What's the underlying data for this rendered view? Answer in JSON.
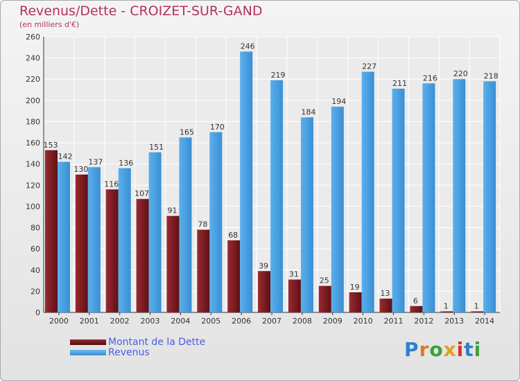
{
  "header": {
    "title": "Revenus/Dette - CROIZET-SUR-GAND",
    "subtitle": "(en milliers d'€)"
  },
  "legend": {
    "items": [
      {
        "label": "Montant de la Dette",
        "color": "#7a1c22"
      },
      {
        "label": "Revenus",
        "color": "#4aa0e0"
      }
    ]
  },
  "logo": {
    "text": "Proxiti",
    "letter_colors": [
      "#2e7fd0",
      "#e07a1a",
      "#3aa03a",
      "#e0a020",
      "#d8302a",
      "#2e7fd0",
      "#3aa03a"
    ]
  },
  "chart_data": {
    "type": "bar",
    "title": "Revenus/Dette - CROIZET-SUR-GAND",
    "ylabel": "(en milliers d'€)",
    "xlabel": "",
    "ylim": [
      0,
      260
    ],
    "yticks": [
      0,
      20,
      40,
      60,
      80,
      100,
      120,
      140,
      160,
      180,
      200,
      220,
      240,
      260
    ],
    "grid": true,
    "legend_position": "bottom-left",
    "categories": [
      "2000",
      "2001",
      "2002",
      "2003",
      "2004",
      "2005",
      "2006",
      "2007",
      "2008",
      "2009",
      "2010",
      "2011",
      "2012",
      "2013",
      "2014"
    ],
    "series": [
      {
        "name": "Montant de la Dette",
        "color": "#7a1c22",
        "values": [
          153,
          130,
          116,
          107,
          91,
          78,
          68,
          39,
          31,
          25,
          19,
          13,
          6,
          1,
          1
        ]
      },
      {
        "name": "Revenus",
        "color": "#4aa0e0",
        "values": [
          142,
          137,
          136,
          151,
          165,
          170,
          246,
          219,
          184,
          194,
          227,
          211,
          216,
          220,
          218
        ]
      }
    ]
  }
}
